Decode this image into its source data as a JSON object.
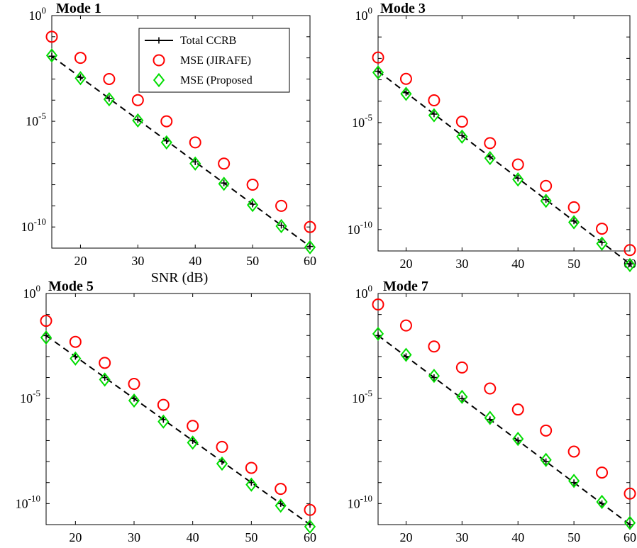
{
  "colors": {
    "ccrb": "#000000",
    "jirafe": "#ff0000",
    "proposed": "#00dd00"
  },
  "legend": {
    "entries": [
      {
        "series": "ccrb",
        "label": "Total CCRB",
        "marker": "plus"
      },
      {
        "series": "jirafe",
        "label": "MSE (JIRAFE)",
        "marker": "circle"
      },
      {
        "series": "proposed",
        "label": "MSE (Proposed",
        "marker": "diamond"
      }
    ],
    "placement": "top-right of first panel"
  },
  "chart_data": [
    {
      "type": "line",
      "title": "Mode 1",
      "xlabel": "SNR (dB)",
      "ylabel": "",
      "yscale": "log",
      "x": [
        15,
        20,
        25,
        30,
        35,
        40,
        45,
        50,
        55,
        60
      ],
      "xlim": [
        15,
        60
      ],
      "ylim": [
        1e-11,
        1
      ],
      "xticks": [
        20,
        30,
        40,
        50,
        60
      ],
      "xtick_labels": [
        "20",
        "30",
        "40",
        "50",
        "60"
      ],
      "yticks": [
        {
          "base": "10",
          "exp": "0",
          "value": 1
        },
        {
          "base": "10",
          "exp": "-5",
          "value": 1e-05
        },
        {
          "base": "10",
          "exp": "-10",
          "value": 1e-10
        }
      ],
      "series": [
        {
          "key": "ccrb",
          "name": "Total CCRB",
          "values": [
            0.012,
            0.0012,
            0.00012,
            1.2e-05,
            1.2e-06,
            1.2e-07,
            1.2e-08,
            1.2e-09,
            1.2e-10,
            1.2e-11
          ]
        },
        {
          "key": "jirafe",
          "name": "MSE (JIRAFE)",
          "values": [
            0.1,
            0.01,
            0.001,
            0.0001,
            1e-05,
            1e-06,
            1e-07,
            1e-08,
            1e-09,
            1e-10
          ]
        },
        {
          "key": "proposed",
          "name": "MSE (Proposed",
          "values": [
            0.013,
            0.0011,
            0.00011,
            1.1e-05,
            1e-06,
            1e-07,
            1.1e-08,
            1.1e-09,
            1.1e-10,
            1.1e-11
          ]
        }
      ],
      "legend": true
    },
    {
      "type": "line",
      "title": "Mode 3",
      "xlabel": "",
      "ylabel": "",
      "yscale": "log",
      "x": [
        15,
        20,
        25,
        30,
        35,
        40,
        45,
        50,
        55,
        60
      ],
      "xlim": [
        15,
        60
      ],
      "ylim": [
        1e-11,
        1
      ],
      "xticks": [
        20,
        30,
        40,
        50,
        60
      ],
      "xtick_labels": [
        "20",
        "30",
        "40",
        "50",
        "60"
      ],
      "yticks": [
        {
          "base": "10",
          "exp": "0",
          "value": 1
        },
        {
          "base": "10",
          "exp": "-5",
          "value": 1e-05
        },
        {
          "base": "10",
          "exp": "-10",
          "value": 1e-10
        }
      ],
      "series": [
        {
          "key": "ccrb",
          "name": "Total CCRB",
          "values": [
            0.0025,
            0.00025,
            2.5e-05,
            2.5e-06,
            2.5e-07,
            2.5e-08,
            2.5e-09,
            2.5e-10,
            2.5e-11,
            2.5e-12
          ]
        },
        {
          "key": "jirafe",
          "name": "MSE (JIRAFE)",
          "values": [
            0.011,
            0.0011,
            0.00011,
            1.1e-05,
            1.1e-06,
            1.1e-07,
            1.1e-08,
            1.1e-09,
            1.1e-10,
            1.1e-11
          ]
        },
        {
          "key": "proposed",
          "name": "MSE (Proposed",
          "values": [
            0.0022,
            0.00022,
            2.2e-05,
            2.2e-06,
            2.2e-07,
            2.2e-08,
            2.2e-09,
            2.2e-10,
            2.2e-11,
            2.2e-12
          ]
        }
      ],
      "legend": false
    },
    {
      "type": "line",
      "title": "Mode 5",
      "xlabel": "",
      "ylabel": "",
      "yscale": "log",
      "x": [
        15,
        20,
        25,
        30,
        35,
        40,
        45,
        50,
        55,
        60
      ],
      "xlim": [
        15,
        60
      ],
      "ylim": [
        1e-11,
        1
      ],
      "xticks": [
        20,
        30,
        40,
        50,
        60
      ],
      "xtick_labels": [
        "20",
        "30",
        "40",
        "50",
        "60"
      ],
      "yticks": [
        {
          "base": "10",
          "exp": "0",
          "value": 1
        },
        {
          "base": "10",
          "exp": "-5",
          "value": 1e-05
        },
        {
          "base": "10",
          "exp": "-10",
          "value": 1e-10
        }
      ],
      "series": [
        {
          "key": "ccrb",
          "name": "Total CCRB",
          "values": [
            0.01,
            0.001,
            0.0001,
            1e-05,
            1e-06,
            1e-07,
            1e-08,
            1e-09,
            1e-10,
            1e-11
          ]
        },
        {
          "key": "jirafe",
          "name": "MSE (JIRAFE)",
          "values": [
            0.05,
            0.005,
            0.0005,
            5e-05,
            5e-06,
            5e-07,
            5e-08,
            5e-09,
            5e-10,
            5e-11
          ]
        },
        {
          "key": "proposed",
          "name": "MSE (Proposed",
          "values": [
            0.008,
            0.0008,
            8e-05,
            8e-06,
            8e-07,
            8e-08,
            8e-09,
            8e-10,
            8e-11,
            8e-12
          ]
        }
      ],
      "legend": false
    },
    {
      "type": "line",
      "title": "Mode 7",
      "xlabel": "",
      "ylabel": "",
      "yscale": "log",
      "x": [
        15,
        20,
        25,
        30,
        35,
        40,
        45,
        50,
        55,
        60
      ],
      "xlim": [
        15,
        60
      ],
      "ylim": [
        1e-11,
        1
      ],
      "xticks": [
        20,
        30,
        40,
        50,
        60
      ],
      "xtick_labels": [
        "20",
        "30",
        "40",
        "50",
        "60"
      ],
      "yticks": [
        {
          "base": "10",
          "exp": "0",
          "value": 1
        },
        {
          "base": "10",
          "exp": "-5",
          "value": 1e-05
        },
        {
          "base": "10",
          "exp": "-10",
          "value": 1e-10
        }
      ],
      "series": [
        {
          "key": "ccrb",
          "name": "Total CCRB",
          "values": [
            0.01,
            0.001,
            0.0001,
            1e-05,
            1e-06,
            1e-07,
            1e-08,
            1e-09,
            1e-10,
            1e-11
          ]
        },
        {
          "key": "jirafe",
          "name": "MSE (JIRAFE)",
          "values": [
            0.3,
            0.03,
            0.003,
            0.0003,
            3e-05,
            3e-06,
            3e-07,
            3e-08,
            3e-09,
            3e-10
          ]
        },
        {
          "key": "proposed",
          "name": "MSE (Proposed",
          "values": [
            0.012,
            0.0012,
            0.00012,
            1.2e-05,
            1.2e-06,
            1.2e-07,
            1.2e-08,
            1.2e-09,
            1.2e-10,
            1.2e-11
          ]
        }
      ],
      "legend": false
    }
  ]
}
